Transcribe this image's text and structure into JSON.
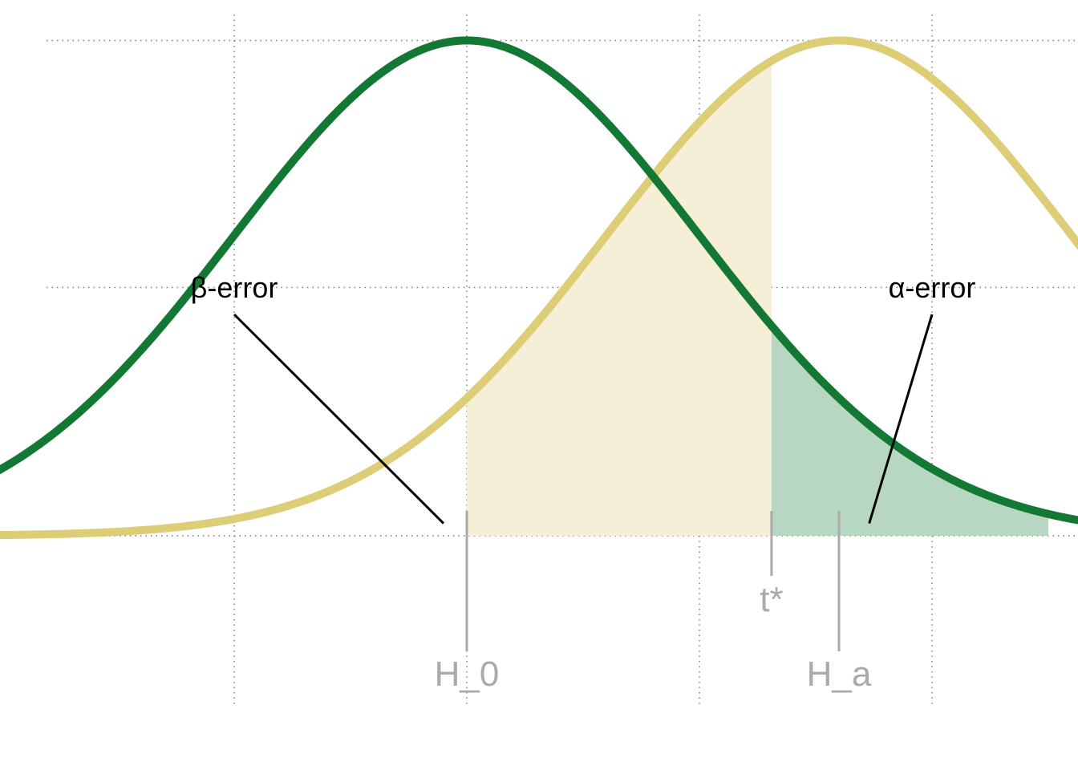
{
  "chart_data": {
    "type": "area",
    "title": "",
    "xlabel": "",
    "ylabel": "",
    "xlim": [
      -4,
      4
    ],
    "ylim": [
      0,
      0.3989
    ],
    "grid": true,
    "series": [
      {
        "name": "H_0",
        "distribution": "normal",
        "mean": 0,
        "sd": 1,
        "color": "#137833"
      },
      {
        "name": "H_a",
        "distribution": "normal",
        "mean": 1.6,
        "sd": 1,
        "color": "#dccd76"
      }
    ],
    "shaded_regions": [
      {
        "label": "β-error",
        "under": "H_a",
        "from": 0,
        "to": 1.31,
        "color": "#f5efd7"
      },
      {
        "label": "α-error",
        "under": "H_0",
        "from": 1.31,
        "to": 2.5,
        "color": "#b8d7c3"
      }
    ],
    "markers": [
      {
        "label": "H_0",
        "x": 0
      },
      {
        "label": "t*",
        "x": 1.31
      },
      {
        "label": "H_a",
        "x": 1.6
      }
    ],
    "annotations": [
      {
        "text": "β-error",
        "points_to_x": -0.1,
        "points_to_y": 0.01
      },
      {
        "text": "α-error",
        "points_to_x": 1.73,
        "points_to_y": 0.01
      }
    ]
  }
}
